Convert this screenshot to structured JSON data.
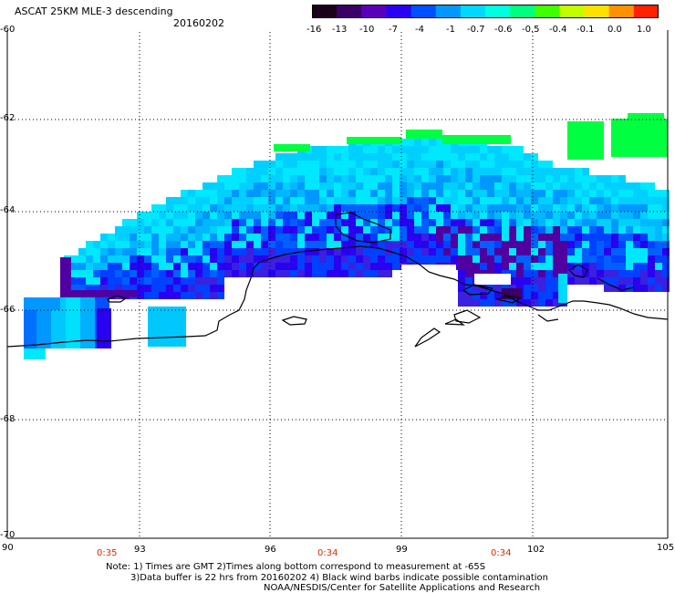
{
  "header": {
    "title": "ASCAT 25KM MLE-3 descending",
    "date": "20160202"
  },
  "colorbar": {
    "labels": [
      "-16",
      "-13",
      "-10",
      "-7",
      "-4",
      "-1",
      "-0.7",
      "-0.6",
      "-0.5",
      "-0.4",
      "-0.1",
      "0.0",
      "1.0"
    ],
    "colors": [
      "#1a001a",
      "#3a0066",
      "#5a00b8",
      "#2a00f0",
      "#0050ff",
      "#0098ff",
      "#00d8ff",
      "#00ffe0",
      "#00ff80",
      "#40ff00",
      "#c0ff00",
      "#ffe000",
      "#ff9000",
      "#ff2000"
    ]
  },
  "lat_labels": [
    "-60",
    "-62",
    "-64",
    "-66",
    "-68",
    "-70"
  ],
  "lon_labels": [
    "90",
    "93",
    "96",
    "99",
    "102",
    "105"
  ],
  "times": [
    "0:35",
    "0:34",
    "0:34"
  ],
  "notes": {
    "line1": "Note: 1) Times are GMT 2)Times along bottom correspond to measurement at -65S",
    "line2": "3)Data buffer is 22 hrs from 20160202 4) Black wind barbs indicate possible contamination",
    "line3": "NOAA/NESDIS/Center for Satellite Applications and Research"
  }
}
